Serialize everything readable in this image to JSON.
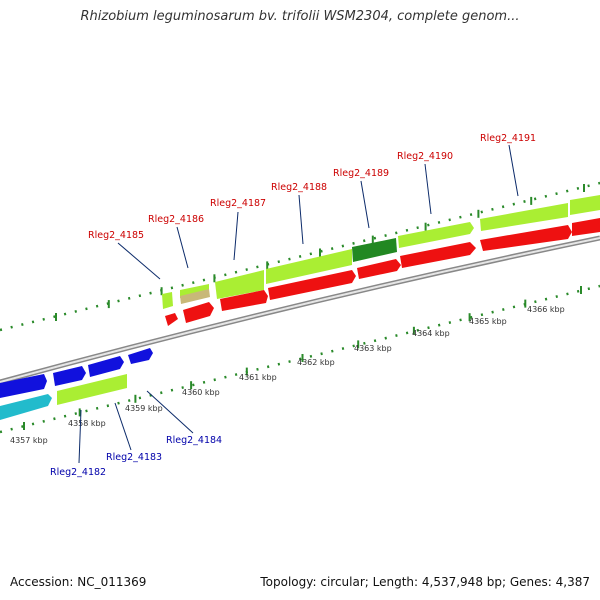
{
  "title": "Rhizobium leguminosarum bv. trifolii WSM2304, complete genom...",
  "footer": {
    "accession": "Accession: NC_011369",
    "summary": "Topology: circular; Length: 4,537,948 bp; Genes: 4,387"
  },
  "colors": {
    "backbone": "#8a8a8a",
    "cds_forward_top": "#aaee33",
    "cds_reverse": "#ee1111",
    "cds_selected": "#228822",
    "cds_blue": "#1111dd",
    "cds_cyan": "#22bbcc",
    "cds_tan": "#c8b878",
    "label_red": "#cc0000",
    "label_blue": "#0000aa",
    "tick": "#2a8a2a"
  },
  "scale": {
    "ticks": [
      "4357 kbp",
      "4358 kbp",
      "4359 kbp",
      "4360 kbp",
      "4361 kbp",
      "4362 kbp",
      "4363 kbp",
      "4364 kbp",
      "4365 kbp",
      "4366 kbp"
    ]
  },
  "genes_top": [
    "Rleg2_4185",
    "Rleg2_4186",
    "Rleg2_4187",
    "Rleg2_4188",
    "Rleg2_4189",
    "Rleg2_4190",
    "Rleg2_4191"
  ],
  "genes_bottom": [
    "Rleg2_4182",
    "Rleg2_4183",
    "Rleg2_4184"
  ]
}
